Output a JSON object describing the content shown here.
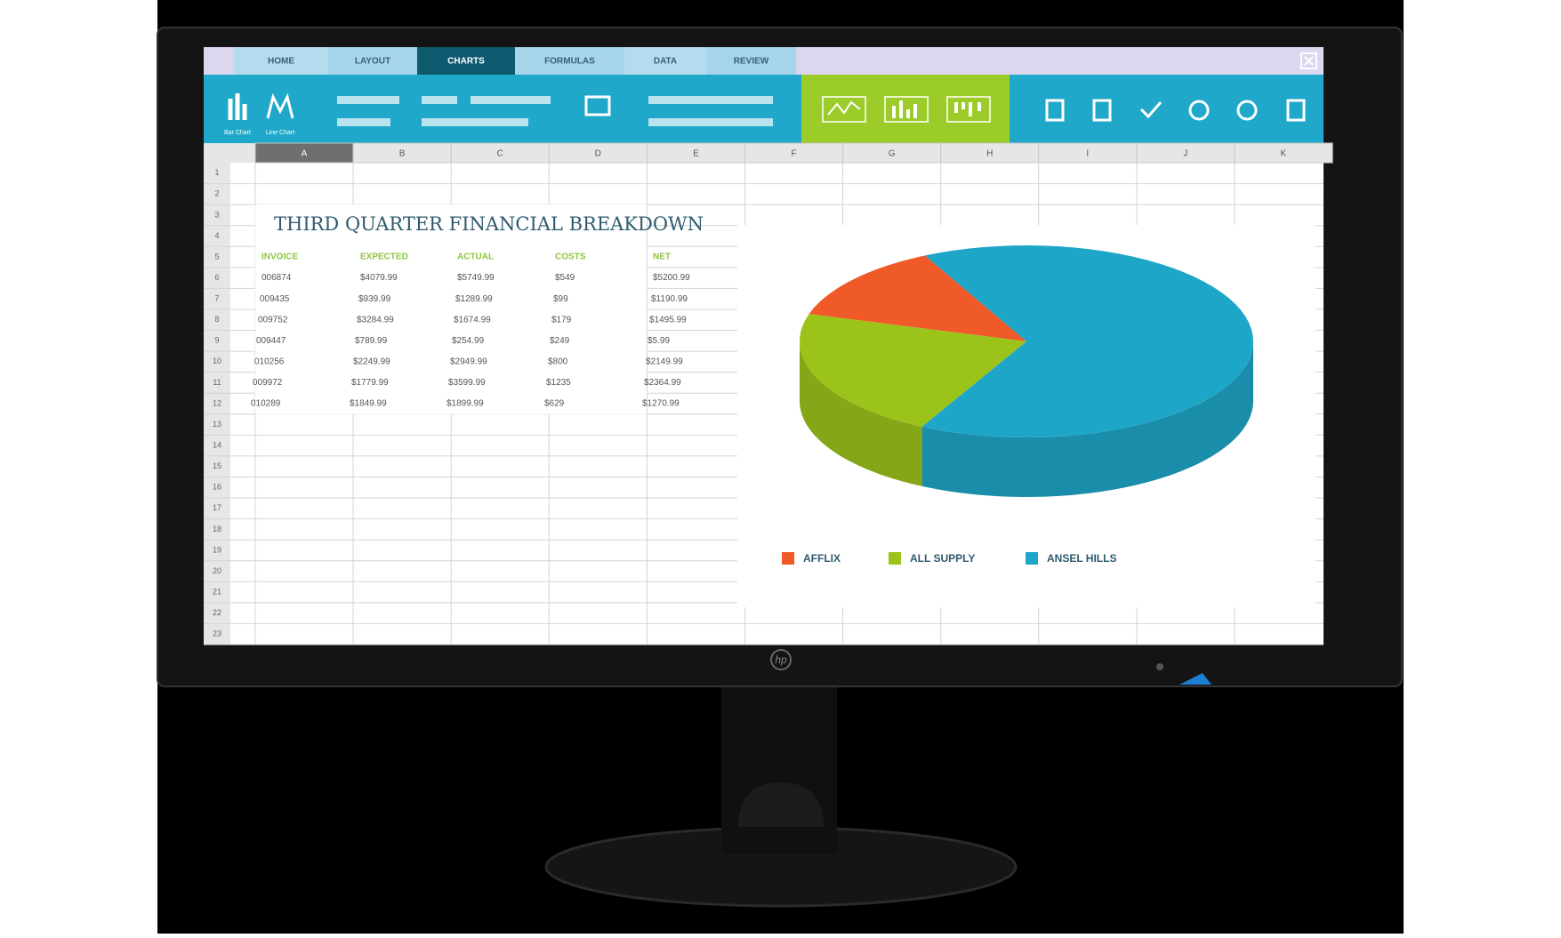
{
  "tabs": [
    "HOME",
    "LAYOUT",
    "CHARTS",
    "FORMULAS",
    "DATA",
    "REVIEW"
  ],
  "active_tab": 2,
  "ribbon_buttons": [
    "Bar Chart",
    "Line Chart"
  ],
  "columns": [
    "A",
    "B",
    "C",
    "D",
    "E",
    "F",
    "G",
    "H",
    "I",
    "J",
    "K"
  ],
  "row_numbers": [
    1,
    2,
    3,
    4,
    5,
    6,
    7,
    8,
    9,
    10,
    11,
    12,
    13,
    14,
    15,
    16,
    17,
    18,
    19,
    20,
    21,
    22,
    23
  ],
  "sheet": {
    "title": "THIRD QUARTER FINANCIAL BREAKDOWN",
    "headers": [
      "INVOICE",
      "EXPECTED",
      "ACTUAL",
      "COSTS",
      "NET"
    ],
    "rows": [
      [
        "006874",
        "$4079.99",
        "$5749.99",
        "$549",
        "$5200.99"
      ],
      [
        "009435",
        "$939.99",
        "$1289.99",
        "$99",
        "$1190.99"
      ],
      [
        "009752",
        "$3284.99",
        "$1674.99",
        "$179",
        "$1495.99"
      ],
      [
        "009447",
        "$789.99",
        "$254.99",
        "$249",
        "$5.99"
      ],
      [
        "010256",
        "$2249.99",
        "$2949.99",
        "$800",
        "$2149.99"
      ],
      [
        "009972",
        "$1779.99",
        "$3599.99",
        "$1235",
        "$2364.99"
      ],
      [
        "010289",
        "$1849.99",
        "$1899.99",
        "$629",
        "$1270.99"
      ]
    ]
  },
  "chart_data": {
    "type": "pie",
    "series": [
      {
        "name": "AFFLIX",
        "color": "#f05a28",
        "value": 13
      },
      {
        "name": "ALL SUPPLY",
        "color": "#9cc31a",
        "value": 22
      },
      {
        "name": "ANSEL HILLS",
        "color": "#1ea6c8",
        "value": 65
      }
    ]
  },
  "brand": "hp"
}
